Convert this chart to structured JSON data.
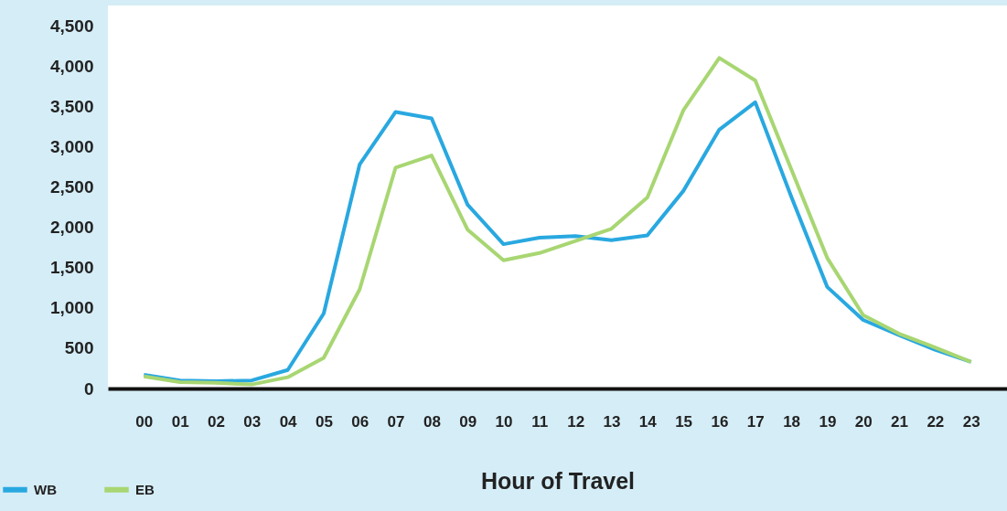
{
  "chart_data": {
    "type": "line",
    "xlabel": "Hour of Travel",
    "categories": [
      "00",
      "01",
      "02",
      "03",
      "04",
      "05",
      "06",
      "07",
      "08",
      "09",
      "10",
      "11",
      "12",
      "13",
      "14",
      "15",
      "16",
      "17",
      "18",
      "19",
      "20",
      "21",
      "22",
      "23"
    ],
    "series": [
      {
        "name": "WB",
        "color": "#29a8e0",
        "values": [
          170,
          100,
          90,
          100,
          230,
          930,
          2780,
          3430,
          3350,
          2280,
          1790,
          1870,
          1890,
          1840,
          1900,
          2450,
          3210,
          3550,
          2380,
          1260,
          850,
          660,
          480,
          330
        ]
      },
      {
        "name": "EB",
        "color": "#a8d672",
        "values": [
          150,
          80,
          70,
          50,
          140,
          380,
          1230,
          2740,
          2890,
          1970,
          1590,
          1680,
          1830,
          1980,
          2370,
          3450,
          4100,
          3820,
          2720,
          1620,
          910,
          680,
          510,
          330
        ]
      }
    ],
    "ylim": [
      0,
      4750
    ],
    "yticks": [
      0,
      500,
      {
        "value": 1000,
        "label": "1,000"
      },
      {
        "value": 1500,
        "label": "1,500"
      },
      {
        "value": 2000,
        "label": "2,000"
      },
      {
        "value": 2500,
        "label": "2,500"
      },
      {
        "value": 3000,
        "label": "3,000"
      },
      {
        "value": 3500,
        "label": "3,500"
      },
      {
        "value": 4000,
        "label": "4,000"
      },
      {
        "value": 4500,
        "label": "4,500"
      }
    ],
    "grid": false,
    "legend": "bottom left",
    "marker": "none",
    "line_style": "solid"
  }
}
